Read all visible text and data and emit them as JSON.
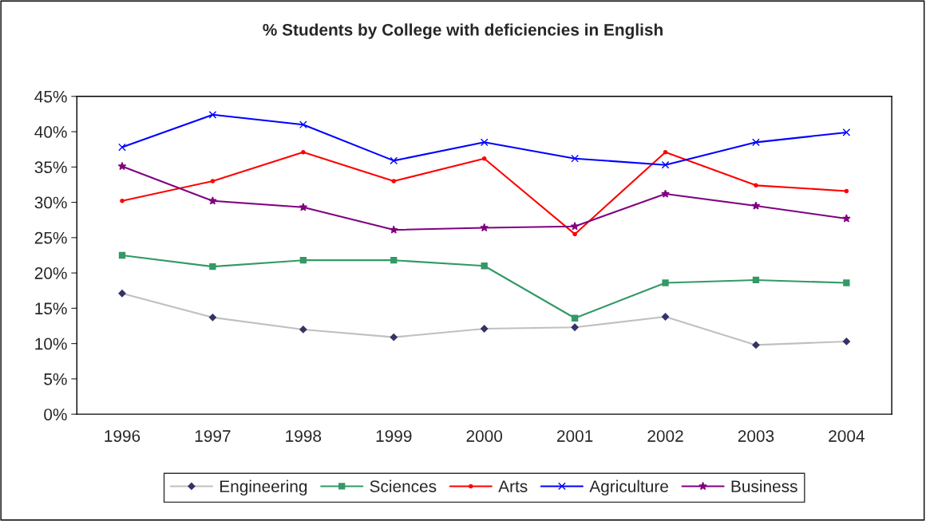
{
  "chart_data": {
    "type": "line",
    "title": "% Students by College with deficiencies in English",
    "categories": [
      "1996",
      "1997",
      "1998",
      "1999",
      "2000",
      "2001",
      "2002",
      "2003",
      "2004"
    ],
    "series": [
      {
        "name": "Engineering",
        "color": "#c0c0c0",
        "marker": "diamond",
        "values": [
          17.1,
          13.7,
          12.0,
          10.9,
          12.1,
          12.3,
          13.8,
          9.8,
          10.3
        ]
      },
      {
        "name": "Sciences",
        "color": "#339966",
        "marker": "square",
        "values": [
          22.5,
          20.9,
          21.8,
          21.8,
          21.0,
          13.6,
          18.6,
          19.0,
          18.6
        ]
      },
      {
        "name": "Arts",
        "color": "#ff0000",
        "marker": "circle",
        "values": [
          30.2,
          33.0,
          37.1,
          33.0,
          36.2,
          25.5,
          37.1,
          32.4,
          31.6
        ]
      },
      {
        "name": "Agriculture",
        "color": "#0000ff",
        "marker": "cross",
        "values": [
          37.8,
          42.4,
          41.0,
          35.9,
          38.5,
          36.2,
          35.3,
          38.5,
          39.9
        ]
      },
      {
        "name": "Business",
        "color": "#800080",
        "marker": "star",
        "values": [
          35.1,
          30.2,
          29.3,
          26.1,
          26.4,
          26.6,
          31.2,
          29.5,
          27.7
        ]
      }
    ],
    "ylim": [
      0,
      45
    ],
    "yticks": [
      {
        "value": 0,
        "label": "0%"
      },
      {
        "value": 5,
        "label": "5%"
      },
      {
        "value": 10,
        "label": "10%"
      },
      {
        "value": 15,
        "label": "15%"
      },
      {
        "value": 20,
        "label": "20%"
      },
      {
        "value": 25,
        "label": "25%"
      },
      {
        "value": 30,
        "label": "30%"
      },
      {
        "value": 35,
        "label": "35%"
      },
      {
        "value": 40,
        "label": "40%"
      },
      {
        "value": 45,
        "label": "45%"
      }
    ],
    "grid": false,
    "legend": "bottom",
    "line_style": "solid"
  }
}
